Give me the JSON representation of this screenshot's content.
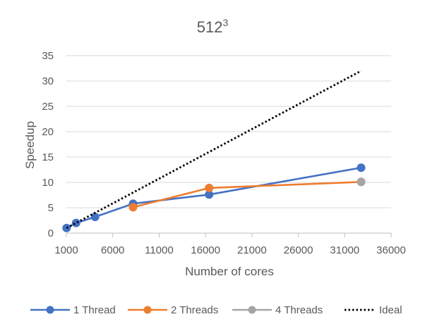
{
  "chart_data": {
    "type": "line",
    "title": "512",
    "title_superscript": "3",
    "xlabel": "Number of cores",
    "ylabel": "Speedup",
    "xlim": [
      1000,
      36000
    ],
    "ylim": [
      0,
      35
    ],
    "xticks": [
      1000,
      6000,
      11000,
      16000,
      21000,
      26000,
      31000,
      36000
    ],
    "yticks": [
      0,
      5,
      10,
      15,
      20,
      25,
      30,
      35
    ],
    "grid": "horizontal",
    "legend": "bottom",
    "series": [
      {
        "name": "1 Thread",
        "color": "#4472C4",
        "style": "solid",
        "markers": true,
        "x": [
          1024,
          2048,
          4096,
          8192,
          16384,
          32768
        ],
        "y": [
          1.0,
          2.0,
          3.2,
          5.8,
          7.6,
          12.9
        ]
      },
      {
        "name": "2 Threads",
        "color": "#ED7D31",
        "style": "solid",
        "markers": true,
        "x": [
          8192,
          16384,
          32768
        ],
        "y": [
          5.1,
          8.9,
          10.1
        ]
      },
      {
        "name": "4 Threads",
        "color": "#A5A5A5",
        "style": "solid",
        "markers": true,
        "x": [
          32768
        ],
        "y": [
          10.1
        ]
      },
      {
        "name": "Ideal",
        "color": "#000000",
        "style": "dotted",
        "markers": false,
        "x": [
          1024,
          32768
        ],
        "y": [
          1,
          32
        ]
      }
    ]
  }
}
